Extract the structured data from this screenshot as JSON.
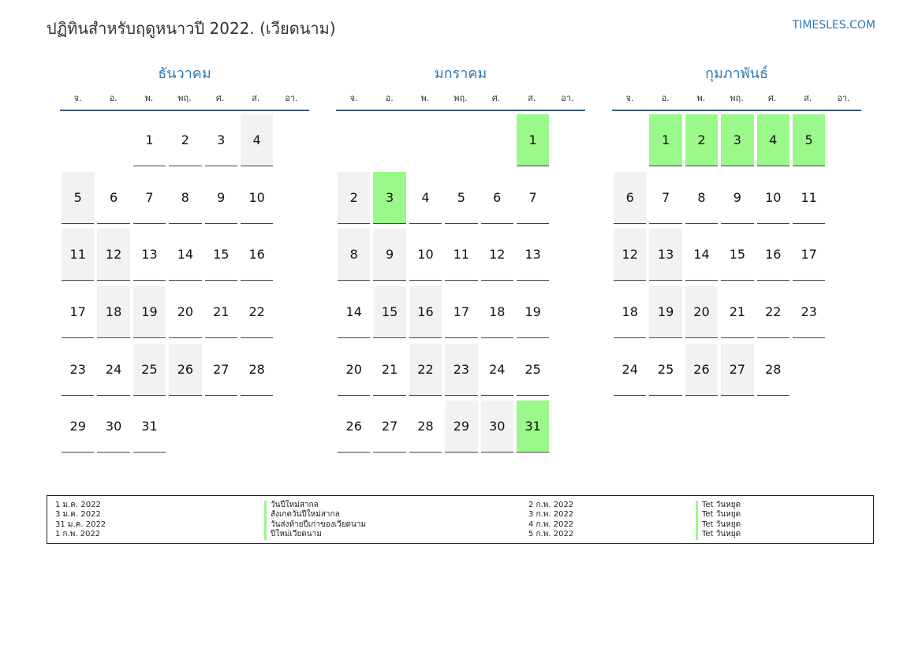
{
  "header": {
    "title": "ปฏิทินสำหรับฤดูหนาวปี 2022. (เวียดนาม)",
    "site": "TIMESLES.COM"
  },
  "colors": {
    "accent": "#2a7ab8",
    "holiday": "#9bf88a",
    "weekend": "#f2f2f2"
  },
  "weekdays": [
    "จ.",
    "อ.",
    "พ.",
    "พฤ.",
    "ศ.",
    "ส.",
    "อา."
  ],
  "months": [
    {
      "name": "ธันวาคม",
      "weeks": [
        [
          "",
          "",
          "1",
          "2",
          "3",
          "4",
          "5"
        ],
        [
          "6",
          "7",
          "8",
          "9",
          "10",
          "11",
          "12"
        ],
        [
          "13",
          "14",
          "15",
          "16",
          "17",
          "18",
          "19"
        ],
        [
          "20",
          "21",
          "22",
          "23",
          "24",
          "25",
          "26"
        ],
        [
          "27",
          "28",
          "29",
          "30",
          "31",
          "",
          ""
        ]
      ],
      "holidays": []
    },
    {
      "name": "มกราคม",
      "weeks": [
        [
          "",
          "",
          "",
          "",
          "",
          "1",
          "2"
        ],
        [
          "3",
          "4",
          "5",
          "6",
          "7",
          "8",
          "9"
        ],
        [
          "10",
          "11",
          "12",
          "13",
          "14",
          "15",
          "16"
        ],
        [
          "17",
          "18",
          "19",
          "20",
          "21",
          "22",
          "23"
        ],
        [
          "24",
          "25",
          "26",
          "27",
          "28",
          "29",
          "30"
        ],
        [
          "31",
          "",
          "",
          "",
          "",
          "",
          ""
        ]
      ],
      "holidays": [
        "1",
        "3",
        "31"
      ]
    },
    {
      "name": "กุมภาพันธ์",
      "weeks": [
        [
          "",
          "1",
          "2",
          "3",
          "4",
          "5",
          "6"
        ],
        [
          "7",
          "8",
          "9",
          "10",
          "11",
          "12",
          "13"
        ],
        [
          "14",
          "15",
          "16",
          "17",
          "18",
          "19",
          "20"
        ],
        [
          "21",
          "22",
          "23",
          "24",
          "25",
          "26",
          "27"
        ],
        [
          "28",
          "",
          "",
          "",
          "",
          "",
          ""
        ]
      ],
      "holidays": [
        "1",
        "2",
        "3",
        "4",
        "5"
      ]
    }
  ],
  "legend": {
    "left": [
      {
        "date": "1 ม.ค. 2022",
        "name": "วันปีใหม่สากล"
      },
      {
        "date": "3 ม.ค. 2022",
        "name": "สังเกตวันปีใหม่สากล"
      },
      {
        "date": "31 ม.ค. 2022",
        "name": "วันส่งท้ายปีเก่าของเวียดนาม"
      },
      {
        "date": "1 ก.พ. 2022",
        "name": "ปีใหม่เวียดนาม"
      }
    ],
    "right": [
      {
        "date": "2 ก.พ. 2022",
        "name": "Tet วันหยุด"
      },
      {
        "date": "3 ก.พ. 2022",
        "name": "Tet วันหยุด"
      },
      {
        "date": "4 ก.พ. 2022",
        "name": "Tet วันหยุด"
      },
      {
        "date": "5 ก.พ. 2022",
        "name": "Tet วันหยุด"
      }
    ]
  }
}
